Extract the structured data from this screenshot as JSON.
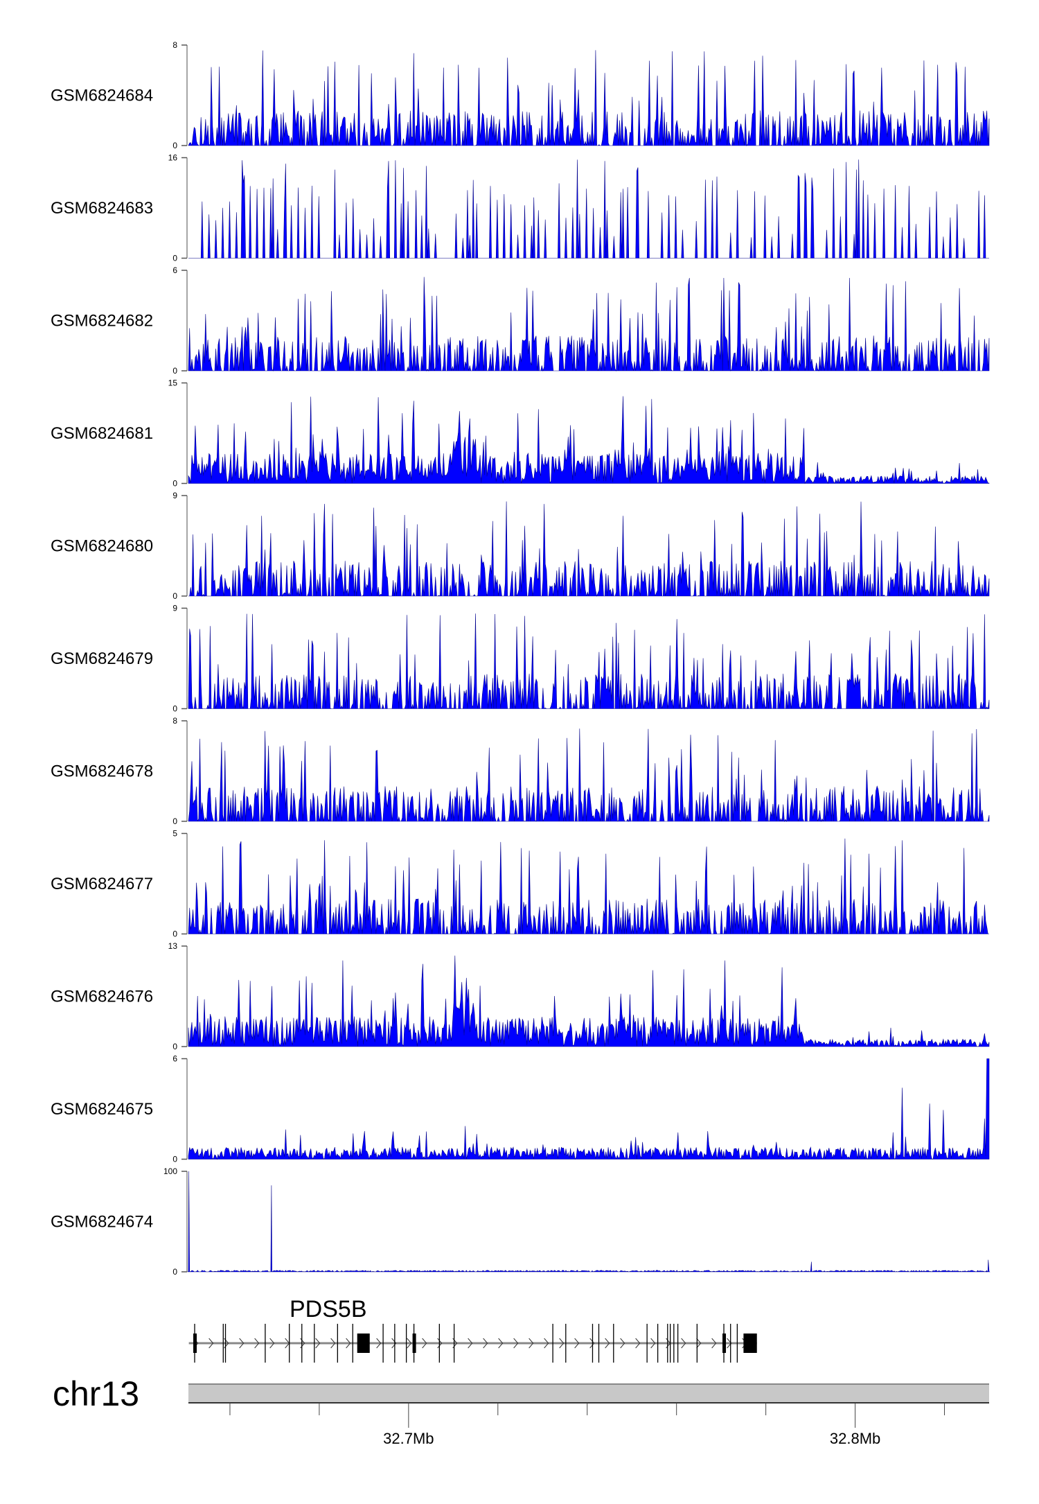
{
  "chart_data": {
    "type": "area",
    "title": "",
    "x_range_mb": [
      32.6507,
      32.83
    ],
    "tracks": [
      {
        "label": "GSM6824684",
        "ylim": [
          0,
          8
        ],
        "style": "dense",
        "seed": 11
      },
      {
        "label": "GSM6824683",
        "ylim": [
          0,
          16
        ],
        "style": "sparse",
        "seed": 23
      },
      {
        "label": "GSM6824682",
        "ylim": [
          0,
          6
        ],
        "style": "dense",
        "seed": 37
      },
      {
        "label": "GSM6824681",
        "ylim": [
          0,
          15
        ],
        "style": "decay",
        "seed": 41
      },
      {
        "label": "GSM6824680",
        "ylim": [
          0,
          9
        ],
        "style": "dense",
        "seed": 53
      },
      {
        "label": "GSM6824679",
        "ylim": [
          0,
          9
        ],
        "style": "dense",
        "seed": 67
      },
      {
        "label": "GSM6824678",
        "ylim": [
          0,
          8
        ],
        "style": "dense",
        "seed": 71
      },
      {
        "label": "GSM6824677",
        "ylim": [
          0,
          5
        ],
        "style": "dense",
        "seed": 83
      },
      {
        "label": "GSM6824676",
        "ylim": [
          0,
          13
        ],
        "style": "decay",
        "seed": 97
      },
      {
        "label": "GSM6824675",
        "ylim": [
          0,
          6
        ],
        "style": "low_end_peaks",
        "seed": 101
      },
      {
        "label": "GSM6824674",
        "ylim": [
          0,
          100
        ],
        "style": "spikes",
        "seed": 113,
        "peaks": [
          {
            "mb": 32.6508,
            "value": 100
          },
          {
            "mb": 32.6693,
            "value": 86
          },
          {
            "mb": 32.7902,
            "value": 10
          },
          {
            "mb": 32.8298,
            "value": 12
          }
        ]
      }
    ],
    "gene": {
      "name": "PDS5B",
      "strand": "+",
      "start_mb": 32.6508,
      "end_mb": 32.778,
      "exons_mb": [
        32.6521,
        32.6585,
        32.659,
        32.6679,
        32.6733,
        32.6761,
        32.6789,
        32.6841,
        32.6875,
        32.6943,
        32.6969,
        32.6995,
        32.7012,
        32.7069,
        32.7102,
        32.7323,
        32.7352,
        32.7412,
        32.7426,
        32.7459,
        32.7534,
        32.7558,
        32.758,
        32.7586,
        32.7594,
        32.7603,
        32.7646,
        32.7706,
        32.7721,
        32.7736
      ],
      "blocks_mb": [
        [
          32.6885,
          32.6913
        ],
        [
          32.775,
          32.778
        ]
      ],
      "thick_mb": [
        32.6521,
        32.7012,
        32.7706
      ]
    },
    "chromosome": "chr13",
    "x_ticks_mb": [
      32.66,
      32.68,
      32.7,
      32.72,
      32.74,
      32.76,
      32.78,
      32.8,
      32.82
    ],
    "x_tick_labels": [
      {
        "mb": 32.7,
        "text": "32.7Mb"
      },
      {
        "mb": 32.8,
        "text": "32.8Mb"
      }
    ]
  },
  "colors": {
    "signal_fill": "#0000ff",
    "signal_stroke": "#00008b",
    "ideogram": "#c8c8c8"
  }
}
